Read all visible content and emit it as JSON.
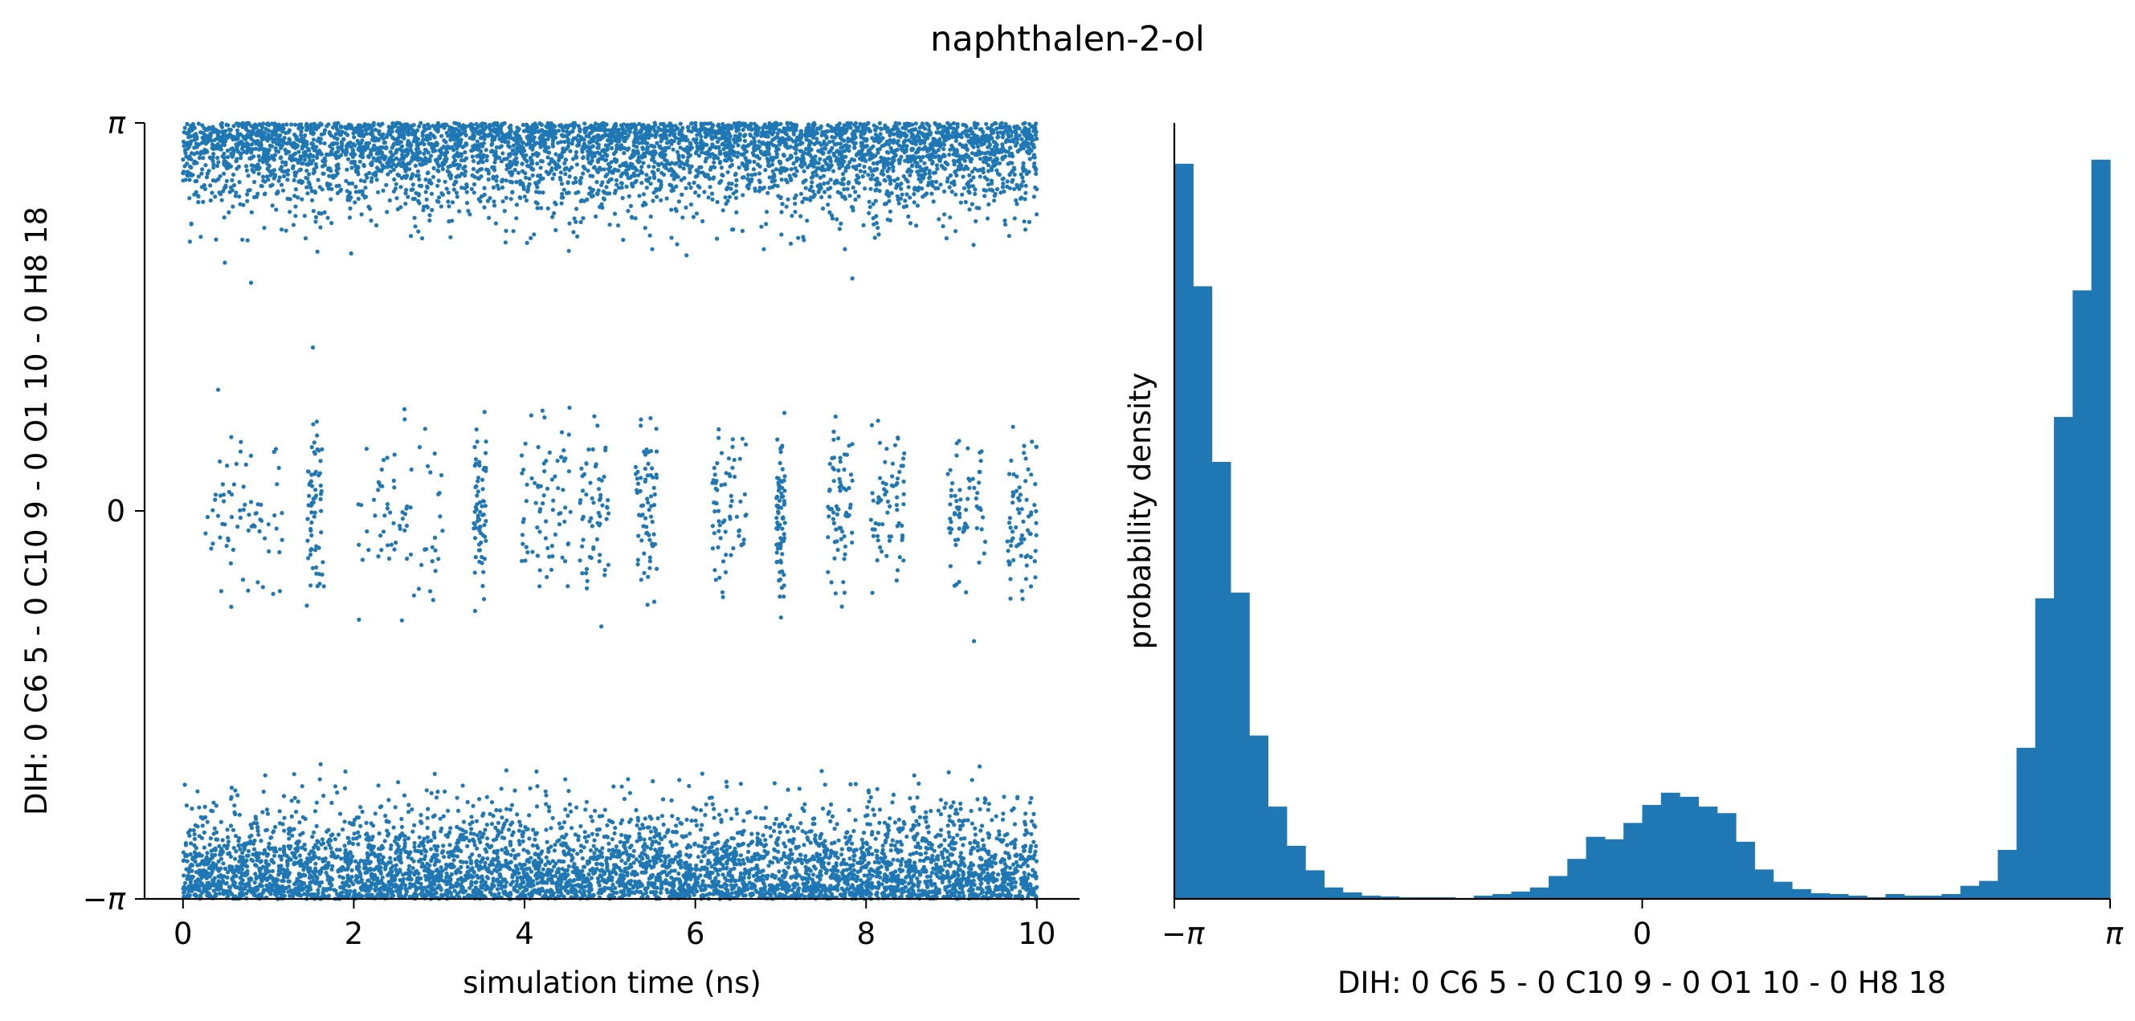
{
  "title": "naphthalen-2-ol",
  "colors": {
    "series": "#1f77b4",
    "axis": "#000000",
    "background": "#ffffff"
  },
  "chart_data": [
    {
      "type": "scatter",
      "xlabel": "simulation time (ns)",
      "ylabel": "DIH:  0 C6 5 -  0 C10 9 -  0 O1 10 -  0 H8 18",
      "xlim": [
        -0.45,
        10.5
      ],
      "ylim": [
        -3.14159,
        3.14159
      ],
      "xticks": [
        0,
        2,
        4,
        6,
        8,
        10
      ],
      "xtick_labels": [
        "0",
        "2",
        "4",
        "6",
        "8",
        "10"
      ],
      "yticks": [
        -3.14159,
        0,
        3.14159
      ],
      "ytick_labels": [
        "−π",
        "0",
        "π"
      ],
      "grid": false,
      "legend": "none",
      "n_points": 10000,
      "x_range": [
        0,
        10
      ],
      "population_fractions": {
        "near_plus_pi": 0.45,
        "near_minus_pi": 0.45,
        "near_zero": 0.1
      },
      "transition_windows_ns": [
        [
          0.25,
          1.2
        ],
        [
          1.45,
          1.65
        ],
        [
          2.05,
          3.05
        ],
        [
          3.4,
          3.55
        ],
        [
          3.95,
          4.55
        ],
        [
          4.65,
          5.0
        ],
        [
          5.3,
          5.55
        ],
        [
          6.2,
          6.6
        ],
        [
          6.95,
          7.05
        ],
        [
          7.55,
          7.85
        ],
        [
          8.05,
          8.45
        ],
        [
          8.95,
          9.4
        ],
        [
          9.65,
          10.0
        ]
      ]
    },
    {
      "type": "bar",
      "subtype": "histogram",
      "xlabel": "DIH:  0 C6 5 -  0 C10 9 -  0 O1 10 -  0 H8 18",
      "ylabel": "probability density",
      "xlim": [
        -3.14159,
        3.14159
      ],
      "xticks": [
        -3.14159,
        0,
        3.14159
      ],
      "xtick_labels": [
        "−π",
        "0",
        "π"
      ],
      "yticks": [],
      "ylim": [
        0,
        0.95
      ],
      "bins": 50,
      "values": [
        0.9,
        0.75,
        0.535,
        0.375,
        0.2,
        0.113,
        0.065,
        0.035,
        0.014,
        0.008,
        0.004,
        0.003,
        0.002,
        0.002,
        0.002,
        0.001,
        0.004,
        0.006,
        0.009,
        0.014,
        0.028,
        0.049,
        0.076,
        0.073,
        0.093,
        0.115,
        0.13,
        0.125,
        0.113,
        0.105,
        0.07,
        0.036,
        0.021,
        0.012,
        0.007,
        0.006,
        0.004,
        0.002,
        0.006,
        0.004,
        0.004,
        0.006,
        0.016,
        0.022,
        0.06,
        0.185,
        0.368,
        0.59,
        0.745,
        0.905
      ],
      "grid": false,
      "legend": "none"
    }
  ]
}
